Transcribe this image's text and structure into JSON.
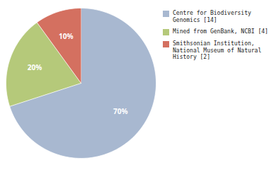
{
  "chart_data": {
    "type": "pie",
    "categories": [
      "Centre for Biodiversity\nGenomics [14]",
      "Mined from GenBank, NCBI [4]",
      "Smithsonian Institution,\nNational Museum of Natural\nHistory [2]"
    ],
    "values": [
      70,
      20,
      10
    ],
    "value_labels": [
      "70%",
      "20%",
      "10%"
    ],
    "colors": [
      "#a8b8d0",
      "#b5c97a",
      "#d47060"
    ],
    "data_labels": true,
    "legend": "right"
  }
}
